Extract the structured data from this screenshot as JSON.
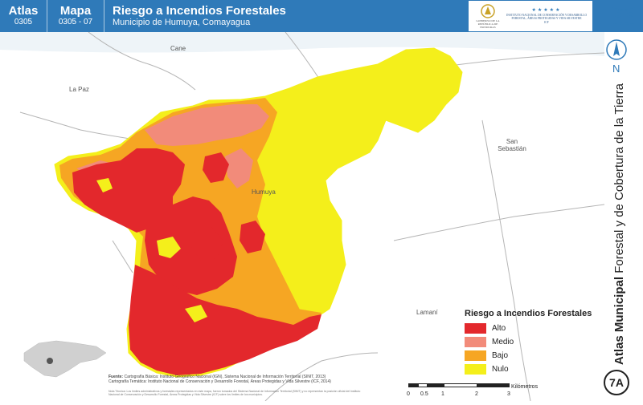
{
  "header": {
    "atlas_label": "Atlas",
    "atlas_code": "0305",
    "mapa_label": "Mapa",
    "mapa_code": "0305 - 07",
    "title": "Riesgo a Incendios Forestales",
    "subtitle": "Municipio de Humuya, Comayagua",
    "logo_left_text": "GOBIERNO DE LA REPÚBLICA DE HONDURAS",
    "logo_right_text": "INSTITUTO NACIONAL DE CONSERVACIÓN Y DESARROLLO FORESTAL, ÁREAS PROTEGIDAS Y VIDA SILVESTRE",
    "logo_right_abbrev": "ICF",
    "accent_color": "#2f7ab9"
  },
  "map": {
    "places": [
      "Cane",
      "La Paz",
      "Humuya",
      "San Sebastián",
      "Lamaní"
    ],
    "water_color": "#e6f2f9",
    "background_color": "#ffffff"
  },
  "legend": {
    "title": "Riesgo a Incendios Forestales",
    "items": [
      {
        "label": "Alto",
        "color": "#e3282c"
      },
      {
        "label": "Medio",
        "color": "#f28b7a"
      },
      {
        "label": "Bajo",
        "color": "#f6a623"
      },
      {
        "label": "Nulo",
        "color": "#f4ef1b"
      }
    ]
  },
  "sidebar": {
    "vertical_title_bold": "Atlas Municipal",
    "vertical_title_rest": " Forestal y de Cobertura de la Tierra",
    "north_label": "N",
    "badge": "7A"
  },
  "sources": {
    "label": "Fuente:",
    "line1": "Cartografía Básica: Instituto Geográfico Nacional (IGN), Sistema Nacional de Información Territorial (SINIT, 2013)",
    "line2": "Cartografía Temática: Instituto Nacional de Conservación y Desarrollo Forestal, Áreas Protegidas y Vida Silvestre (ICF, 2014)",
    "note": "Nota Técnica: Los límites administrativos y forestales representados en este mapa, fueron tomados del Sistema Nacional de Información Territorial (SINIT) y no representan la posición oficial del Instituto Nacional de Conservación y Desarrollo Forestal, Áreas Protegidas y Vida Silvestre (ICF) sobre los límites de los municipios."
  },
  "scale": {
    "ticks": [
      "0",
      "0.5",
      "1",
      "2",
      "3"
    ],
    "unit": "Kilómetros"
  }
}
